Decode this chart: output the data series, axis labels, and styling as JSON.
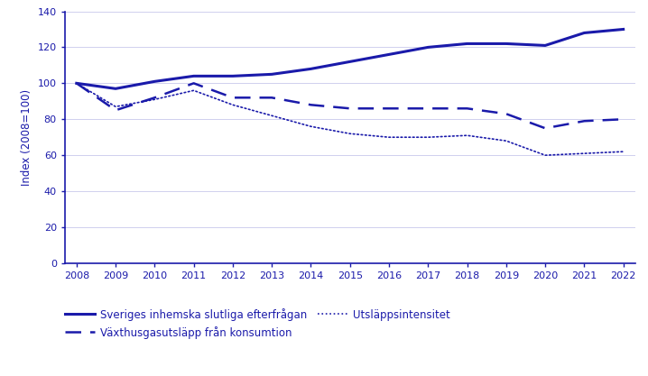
{
  "years": [
    2008,
    2009,
    2010,
    2011,
    2012,
    2013,
    2014,
    2015,
    2016,
    2017,
    2018,
    2019,
    2020,
    2021,
    2022
  ],
  "inhemsk": [
    100,
    97,
    101,
    104,
    104,
    105,
    108,
    112,
    116,
    120,
    122,
    122,
    121,
    128,
    130
  ],
  "vaxthusgaser": [
    100,
    85,
    92,
    100,
    92,
    92,
    88,
    86,
    86,
    86,
    86,
    83,
    75,
    79,
    80
  ],
  "intensitet": [
    100,
    87,
    91,
    96,
    88,
    82,
    76,
    72,
    70,
    70,
    71,
    68,
    60,
    61,
    62
  ],
  "line_color": "#1a1aaa",
  "ylabel": "Index (2008=100)",
  "ylim": [
    0,
    140
  ],
  "yticks": [
    0,
    20,
    40,
    60,
    80,
    100,
    120,
    140
  ],
  "legend_solid": "Sveriges inhemska slutliga efterfrågan",
  "legend_dashed": "Växthusgasutsläpp från konsumtion",
  "legend_dotted": "Utsläppsintensitet",
  "background_color": "#ffffff",
  "grid_color": "#d0d0ee"
}
